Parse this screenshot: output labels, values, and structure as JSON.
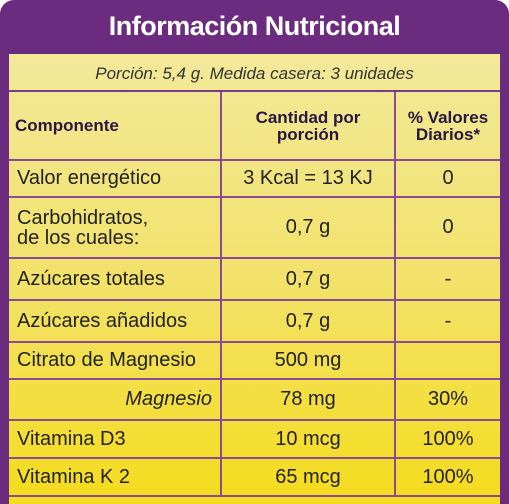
{
  "header": {
    "title": "Información Nutricional"
  },
  "serving": "Porción: 5,4 g. Medida casera: 3 unidades",
  "table": {
    "columns": [
      "Componente",
      "Cantidad por porción",
      "% Valores Diarios*"
    ],
    "rows": [
      [
        "Valor energético",
        "3 Kcal = 13 KJ",
        "0"
      ],
      [
        "Carbohidratos, de los cuales:",
        "0,7 g",
        "0"
      ],
      [
        "Azúcares totales",
        "0,7 g",
        "-"
      ],
      [
        "Azúcares añadidos",
        "0,7 g",
        "-"
      ],
      [
        "Citrato de Magnesio",
        "500 mg",
        ""
      ],
      [
        "Magnesio",
        "78 mg",
        "30%"
      ],
      [
        "Vitamina D3",
        "10 mcg",
        "100%"
      ],
      [
        "Vitamina K 2",
        "65 mcg",
        "100%"
      ]
    ]
  }
}
